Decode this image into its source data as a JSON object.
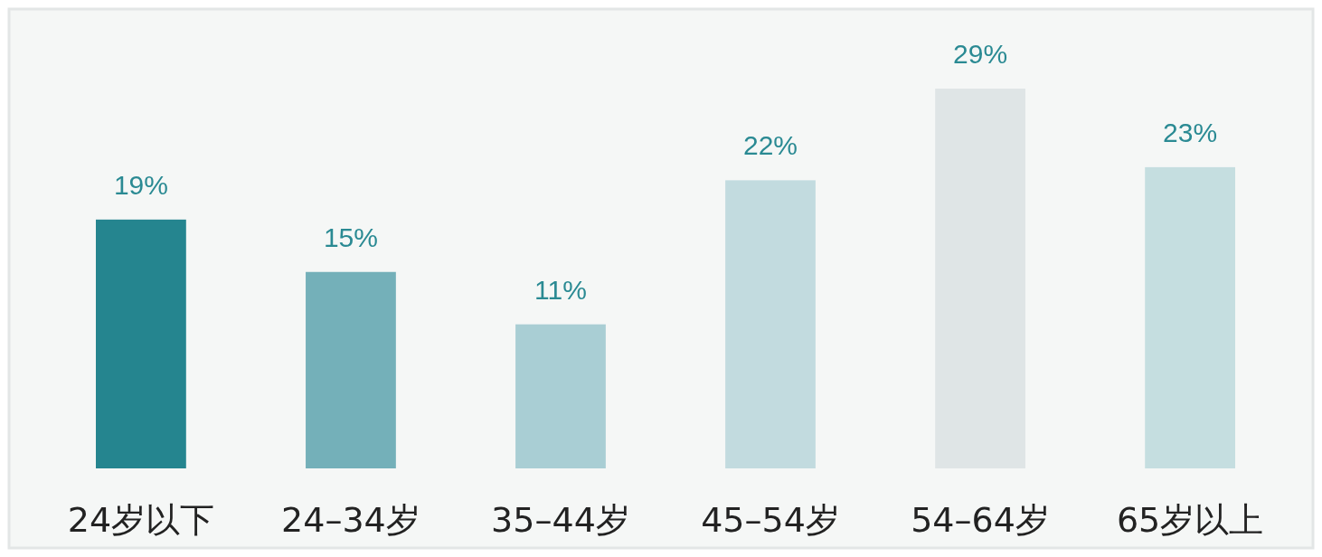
{
  "chart_data": {
    "type": "bar",
    "categories": [
      "24岁以下",
      "24–34岁",
      "35–44岁",
      "45–54岁",
      "54–64岁",
      "65岁以上"
    ],
    "values": [
      19,
      15,
      11,
      22,
      29,
      23
    ],
    "value_labels": [
      "19%",
      "15%",
      "11%",
      "22%",
      "29%",
      "23%"
    ],
    "colors": [
      "#25858f",
      "#74b0b9",
      "#a9ced4",
      "#c2dbdf",
      "#dfe5e6",
      "#c5dee0"
    ]
  }
}
